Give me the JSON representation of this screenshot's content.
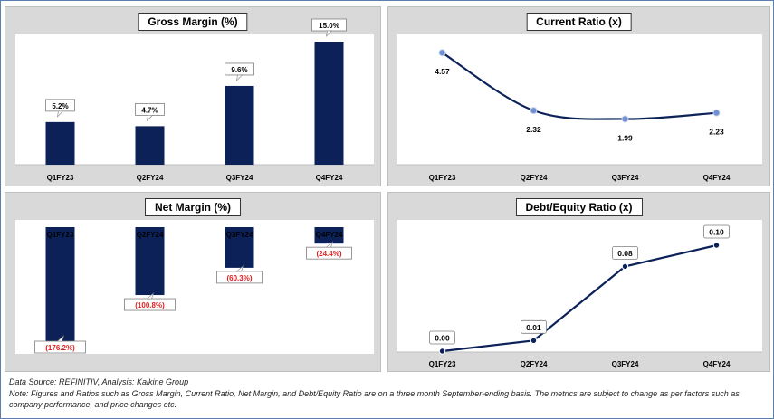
{
  "colors": {
    "bar": "#0b2158",
    "line": "#0b2158",
    "marker": "#6f8fd1",
    "negative_label": "#e02020",
    "panel_bg": "#d9d9d9"
  },
  "chart_data": [
    {
      "id": "gross",
      "type": "bar",
      "title": "Gross Margin (%)",
      "categories": [
        "Q1FY23",
        "Q2FY24",
        "Q3FY24",
        "Q4FY24"
      ],
      "values": [
        5.2,
        4.7,
        9.6,
        15.0
      ],
      "labels": [
        "5.2%",
        "4.7%",
        "9.6%",
        "15.0%"
      ],
      "ylim": [
        0,
        15.0
      ],
      "grid": false
    },
    {
      "id": "current",
      "type": "line",
      "title": "Current Ratio (x)",
      "categories": [
        "Q1FY23",
        "Q2FY24",
        "Q3FY24",
        "Q4FY24"
      ],
      "values": [
        4.57,
        2.32,
        1.99,
        2.23
      ],
      "labels": [
        "4.57",
        "2.32",
        "1.99",
        "2.23"
      ],
      "ylim": [
        0,
        5
      ],
      "grid": false
    },
    {
      "id": "net",
      "type": "bar",
      "title": "Net Margin (%)",
      "categories": [
        "Q1FY23",
        "Q2FY24",
        "Q3FY24",
        "Q4FY24"
      ],
      "values": [
        -176.2,
        -100.8,
        -60.3,
        -24.4
      ],
      "labels": [
        "(176.2%)",
        "(100.8%)",
        "(60.3%)",
        "(24.4%)"
      ],
      "ylim": [
        -180,
        0
      ],
      "grid": false
    },
    {
      "id": "debt",
      "type": "line",
      "title": "Debt/Equity Ratio (x)",
      "categories": [
        "Q1FY23",
        "Q2FY24",
        "Q3FY24",
        "Q4FY24"
      ],
      "values": [
        0.0,
        0.01,
        0.08,
        0.1
      ],
      "labels": [
        "0.00",
        "0.01",
        "0.08",
        "0.10"
      ],
      "ylim": [
        0,
        0.1
      ],
      "grid": false
    }
  ],
  "footer": {
    "source": "Data Source: REFINITIV, Analysis: Kalkine Group",
    "note": "Note: Figures and Ratios such as Gross Margin, Current Ratio, Net Margin, and Debt/Equity Ratio are on a three month September-ending basis. The metrics are subject to change as per factors such as company performance, and price changes etc."
  }
}
